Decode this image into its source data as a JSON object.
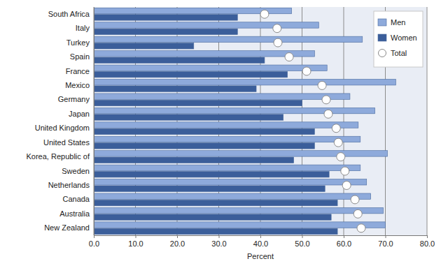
{
  "chart_data": {
    "type": "bar",
    "orientation": "horizontal",
    "xlabel": "Percent",
    "categories": [
      "South Africa",
      "Italy",
      "Turkey",
      "Spain",
      "France",
      "Mexico",
      "Germany",
      "Japan",
      "United Kingdom",
      "United States",
      "Korea, Republic of",
      "Sweden",
      "Netherlands",
      "Canada",
      "Australia",
      "New Zealand"
    ],
    "series": [
      {
        "name": "Men",
        "type": "bar",
        "color": "#8eaadb",
        "values": [
          47.5,
          54,
          64.5,
          53,
          56,
          72.5,
          61.5,
          67.5,
          63.5,
          64,
          70.5,
          64,
          65.5,
          66.5,
          69.5,
          70
        ]
      },
      {
        "name": "Women",
        "type": "bar",
        "color": "#3b5e9a",
        "values": [
          34.5,
          34.5,
          24,
          41,
          46.5,
          39,
          50,
          45.5,
          53,
          53,
          48,
          56.5,
          55.5,
          58.5,
          57,
          58.5
        ]
      },
      {
        "name": "Total",
        "type": "scatter",
        "marker": "circle",
        "color": "#ffffff",
        "values": [
          41,
          44,
          44.2,
          46.9,
          51.1,
          54.8,
          55.8,
          56.3,
          58.2,
          58.7,
          59.3,
          60.3,
          60.7,
          62.7,
          63.4,
          64.2
        ]
      }
    ],
    "xlim": [
      0,
      80
    ],
    "xticks": [
      {
        "value": 0,
        "label": "0.0"
      },
      {
        "value": 10,
        "label": "10.0"
      },
      {
        "value": 20,
        "label": "20.0"
      },
      {
        "value": 30,
        "label": "30.0"
      },
      {
        "value": 40,
        "label": "40.0"
      },
      {
        "value": 50,
        "label": "50.0"
      },
      {
        "value": 60,
        "label": "60.0"
      },
      {
        "value": 70,
        "label": "70.0"
      },
      {
        "value": 80,
        "label": "80.0"
      }
    ],
    "grid": true,
    "legend": "top-right"
  }
}
